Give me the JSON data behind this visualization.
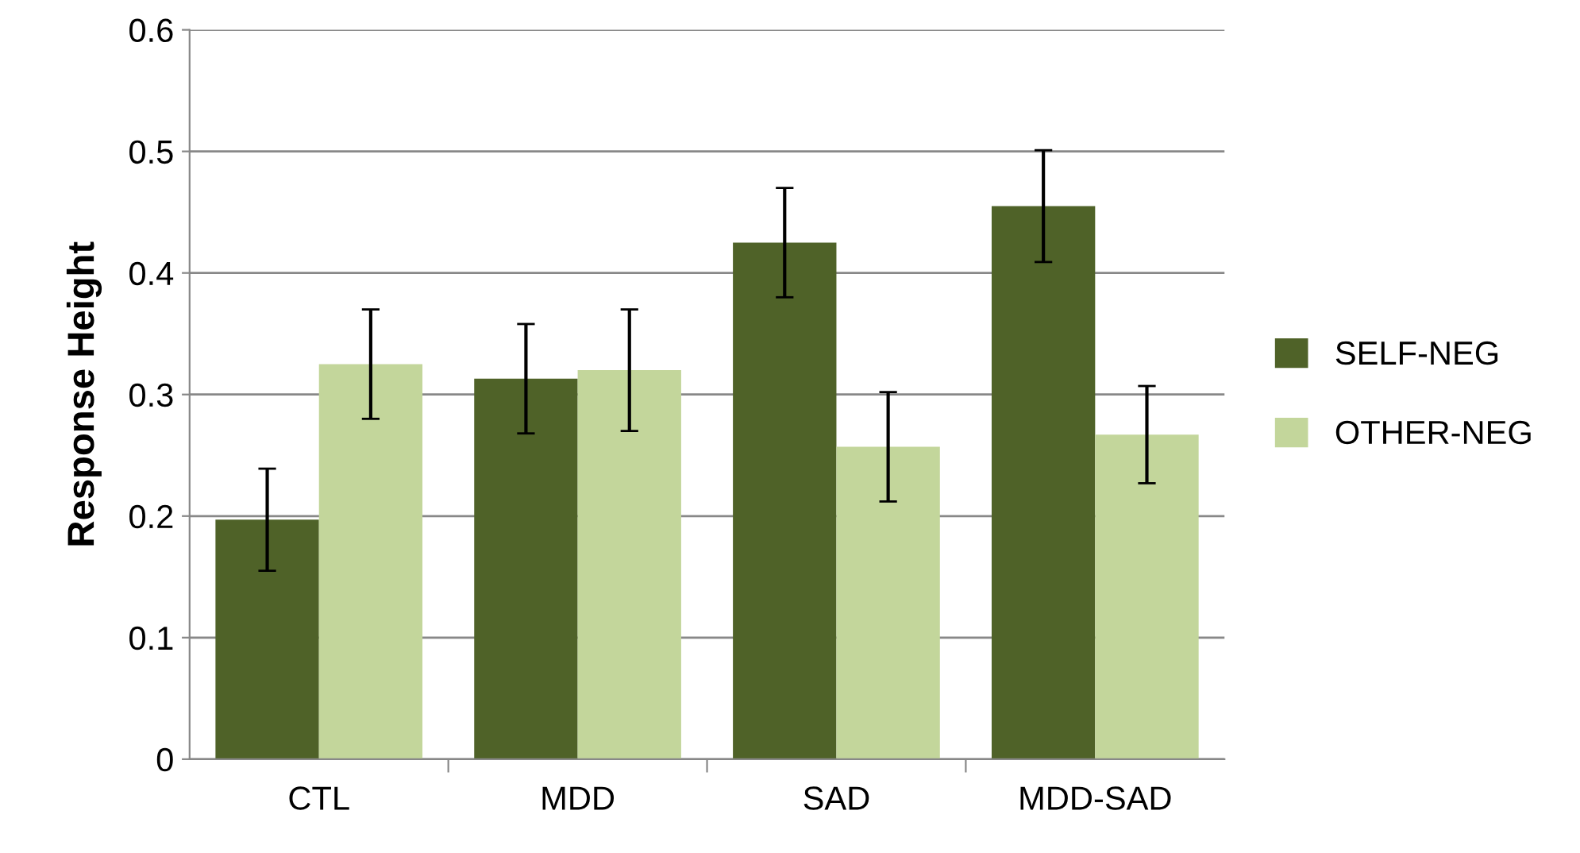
{
  "chart_data": {
    "type": "bar",
    "ylabel": "Response Height",
    "categories": [
      "CTL",
      "MDD",
      "SAD",
      "MDD-SAD"
    ],
    "series": [
      {
        "name": "SELF-NEG",
        "color": "#4f6228",
        "values": [
          0.197,
          0.313,
          0.425,
          0.455
        ],
        "errors": [
          0.042,
          0.045,
          0.045,
          0.046
        ]
      },
      {
        "name": "OTHER-NEG",
        "color": "#c3d69b",
        "values": [
          0.325,
          0.32,
          0.257,
          0.267
        ],
        "errors": [
          0.045,
          0.05,
          0.045,
          0.04
        ]
      }
    ],
    "ylim": [
      0,
      0.6
    ],
    "yticks": [
      0,
      0.1,
      0.2,
      0.3,
      0.4,
      0.5,
      0.6
    ],
    "grid": "y",
    "legend": "right"
  }
}
